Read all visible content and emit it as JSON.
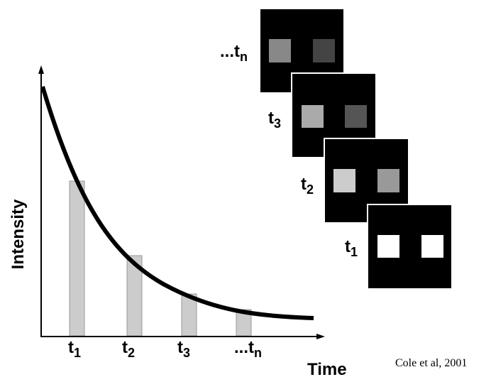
{
  "axes": {
    "y_label": "Intensity",
    "x_label": "Time"
  },
  "time_labels": [
    {
      "base": "t",
      "sub": "1"
    },
    {
      "base": "t",
      "sub": "2"
    },
    {
      "base": "t",
      "sub": "3"
    },
    {
      "base": "...t",
      "sub": "n"
    }
  ],
  "frame_labels": [
    {
      "base": "...t",
      "sub": "n"
    },
    {
      "base": "t",
      "sub": "3"
    },
    {
      "base": "t",
      "sub": "2"
    },
    {
      "base": "t",
      "sub": "1"
    }
  ],
  "citation": "Cole et al, 2001"
}
